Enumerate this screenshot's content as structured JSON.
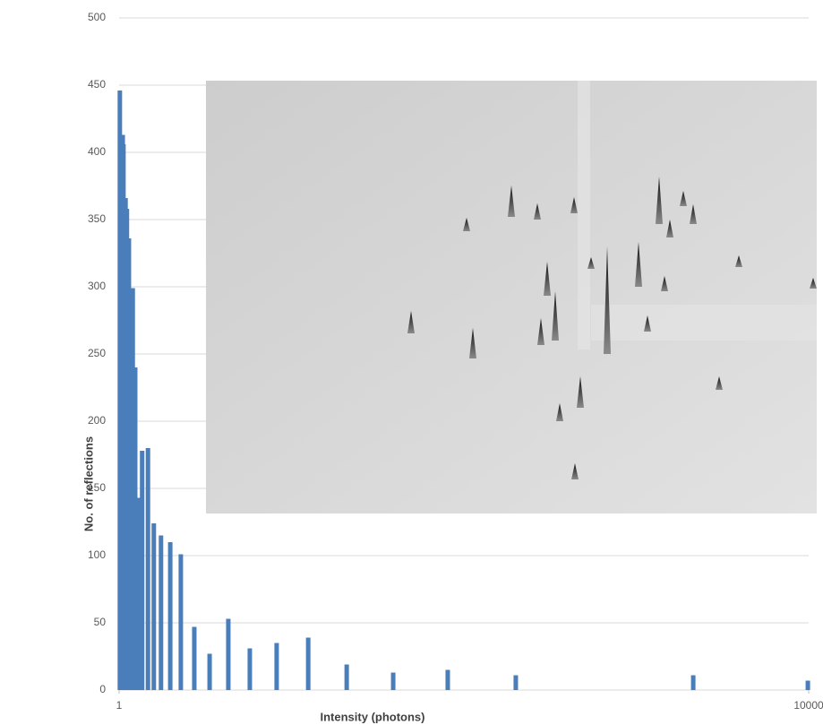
{
  "chart_data": {
    "type": "bar",
    "x_label": "Intensity (photons)",
    "y_label": "No. of reflections",
    "x": [
      1.01,
      1.05,
      1.06,
      1.09,
      1.11,
      1.14,
      1.2,
      1.24,
      1.3,
      1.36,
      1.47,
      1.59,
      1.75,
      1.98,
      2.28,
      2.73,
      3.35,
      4.3,
      5.73,
      8.2,
      12.5,
      20.9,
      38.9,
      80.6,
      200,
      2140,
      9890
    ],
    "values": [
      446,
      413,
      406,
      366,
      358,
      336,
      299,
      240,
      143,
      178,
      180,
      124,
      115,
      110,
      101,
      47,
      27,
      53,
      31,
      35,
      39,
      19,
      13,
      15,
      11,
      11,
      7
    ],
    "color": "#4a7ebb",
    "xscale": "log",
    "xlim": [
      1,
      10000
    ],
    "xticks": [
      1,
      10000
    ],
    "ylim": [
      0,
      500
    ],
    "yticks": [
      0,
      50,
      100,
      150,
      200,
      250,
      300,
      350,
      400,
      450,
      500
    ],
    "grid": true
  }
}
